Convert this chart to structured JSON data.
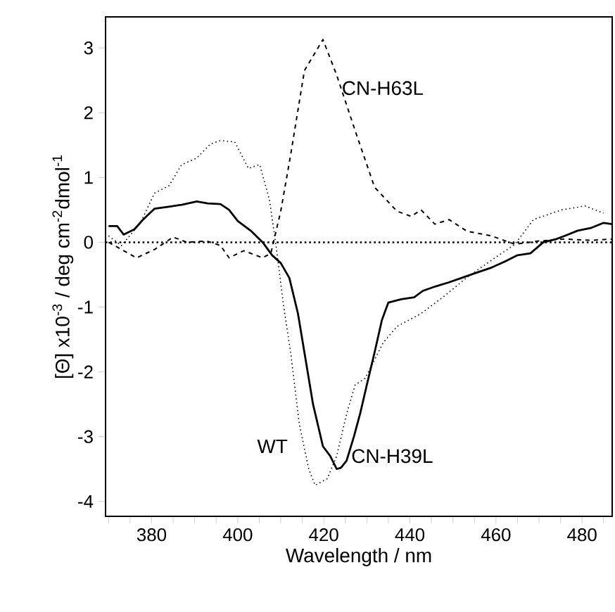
{
  "chart_data": {
    "type": "line",
    "xlabel": "Wavelength / nm",
    "ylabel": "[Θ] x10$^{-3}$ / deg cm$^{-2}$dmol$^{-1}$",
    "xlim": [
      369.3,
      487
    ],
    "ylim": [
      -4.23,
      3.48
    ],
    "xticks": [
      380,
      {
        "value": 385,
        "label": null
      },
      {
        "value": 390,
        "label": null
      },
      {
        "value": 395,
        "label": null
      },
      400,
      {
        "value": 405,
        "label": null
      },
      {
        "value": 410,
        "label": null
      },
      {
        "value": 415,
        "label": null
      },
      420,
      {
        "value": 425,
        "label": null
      },
      {
        "value": 430,
        "label": null
      },
      {
        "value": 435,
        "label": null
      },
      440,
      {
        "value": 445,
        "label": null
      },
      {
        "value": 450,
        "label": null
      },
      {
        "value": 455,
        "label": null
      },
      460,
      {
        "value": 465,
        "label": null
      },
      {
        "value": 470,
        "label": null
      },
      {
        "value": 475,
        "label": null
      },
      480,
      {
        "value": 485,
        "label": null
      },
      {
        "value": 375,
        "label": null
      },
      {
        "value": 370,
        "label": null
      }
    ],
    "yticks": [
      -4,
      -3,
      -2,
      -1,
      0,
      1,
      2,
      3
    ],
    "grid": false,
    "legend": false,
    "marker": "none",
    "ref_lines": [
      {
        "axis": "y",
        "value": 0,
        "line_style": "dotted",
        "color": "#000000"
      }
    ],
    "series": [
      {
        "name": "CN-H39L",
        "color": "#000000",
        "line_style": "solid",
        "x": [
          370,
          372,
          373.5,
          376,
          378,
          380.7,
          384,
          387,
          390.5,
          393,
          396,
          398,
          400,
          403,
          405.8,
          408,
          410,
          412,
          414,
          415.5,
          417.5,
          419.8,
          421.5,
          423,
          424,
          425.3,
          427,
          428.5,
          430,
          431.8,
          433.5,
          435,
          438,
          441,
          443,
          446,
          449,
          452,
          455,
          459,
          462,
          465,
          468,
          471,
          474,
          476,
          479,
          482,
          485,
          487
        ],
        "values": [
          0.25,
          0.25,
          0.12,
          0.2,
          0.35,
          0.52,
          0.55,
          0.58,
          0.63,
          0.6,
          0.59,
          0.5,
          0.33,
          0.18,
          0,
          -0.2,
          -0.32,
          -0.55,
          -1.1,
          -1.7,
          -2.5,
          -3.15,
          -3.3,
          -3.5,
          -3.48,
          -3.37,
          -3.0,
          -2.63,
          -2.2,
          -1.7,
          -1.2,
          -0.93,
          -0.88,
          -0.85,
          -0.75,
          -0.68,
          -0.62,
          -0.55,
          -0.48,
          -0.39,
          -0.3,
          -0.2,
          -0.17,
          0.0,
          0.05,
          0.1,
          0.18,
          0.22,
          0.3,
          0.28
        ]
      },
      {
        "name": "CN-H63L",
        "color": "#000000",
        "line_style": "dashed",
        "x": [
          370,
          376.5,
          380.7,
          385,
          388.2,
          392.8,
          396,
          398,
          401.4,
          405.8,
          407.7,
          410,
          412.3,
          415.5,
          419.8,
          423,
          427.3,
          431.8,
          437,
          440.3,
          442.6,
          445.8,
          449.1,
          453.3,
          458.9,
          464.4,
          470,
          476,
          482,
          487
        ],
        "values": [
          0,
          -0.24,
          -0.11,
          0.08,
          0,
          0.02,
          -0.05,
          -0.24,
          -0.13,
          -0.24,
          -0.17,
          0.48,
          1.35,
          2.65,
          3.13,
          2.58,
          1.72,
          0.85,
          0.48,
          0.4,
          0.5,
          0.28,
          0.35,
          0.17,
          0.1,
          -0.03,
          0.02,
          0.05,
          0.03,
          0.05
        ]
      },
      {
        "name": "WT",
        "color": "#000000",
        "line_style": "dotted",
        "x": [
          370,
          373,
          377.4,
          380.7,
          384,
          387,
          390.5,
          393.7,
          396,
          399.3,
          402.5,
          405.1,
          407.4,
          409,
          410.7,
          412.3,
          414.3,
          416.5,
          418,
          420.8,
          423,
          425.3,
          427.3,
          429.6,
          433.8,
          437,
          442.6,
          448,
          453.3,
          458.9,
          464.4,
          468.7,
          475.2,
          480.7,
          485
        ],
        "values": [
          0.1,
          -0.05,
          0.3,
          0.76,
          0.87,
          1.2,
          1.3,
          1.52,
          1.57,
          1.55,
          1.14,
          1.2,
          0.65,
          -0.1,
          -1.0,
          -1.7,
          -2.8,
          -3.5,
          -3.75,
          -3.65,
          -3.3,
          -2.65,
          -2.2,
          -2.1,
          -1.55,
          -1.3,
          -1.1,
          -0.83,
          -0.54,
          -0.28,
          -0.03,
          0.35,
          0.5,
          0.56,
          0.45
        ]
      }
    ]
  }
}
